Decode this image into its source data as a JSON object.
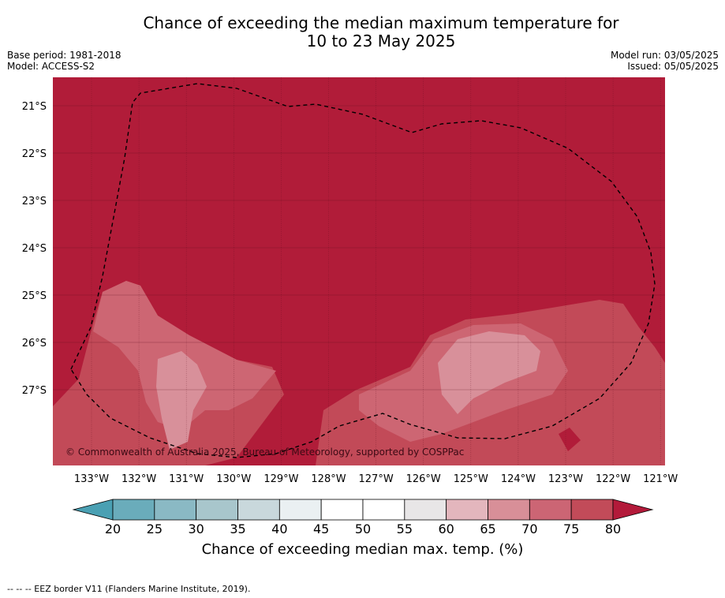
{
  "title": {
    "line1": "Chance of exceeding the median maximum temperature for",
    "line2": "10 to 23 May 2025"
  },
  "meta_left": {
    "base_period": "Base period: 1981-2018",
    "model": "Model: ACCESS-S2"
  },
  "meta_right": {
    "model_run": "Model run: 03/05/2025",
    "issued": "Issued: 05/05/2025"
  },
  "copyright": "© Commonwealth of Australia 2025, Bureau of Meteorology, supported by COSPPac",
  "footnote": "-- -- -- EEZ border V11 (Flanders Marine Institute, 2019).",
  "map": {
    "lat_ticks": [
      "21°S",
      "22°S",
      "23°S",
      "24°S",
      "25°S",
      "26°S",
      "27°S"
    ],
    "lon_ticks": [
      "133°W",
      "132°W",
      "131°W",
      "130°W",
      "129°W",
      "128°W",
      "127°W",
      "126°W",
      "125°W",
      "124°W",
      "123°W",
      "122°W",
      "121°W"
    ],
    "colors": {
      "gt80": "#b11c39",
      "c75_80": "#c24a58",
      "c70_75": "#cd6673",
      "c65_70": "#d8909a",
      "c60_65": "#e4b7bd"
    }
  },
  "colorbar": {
    "title": "Chance of exceeding median max. temp. (%)",
    "ticks": [
      "20",
      "25",
      "30",
      "35",
      "40",
      "45",
      "50",
      "55",
      "60",
      "65",
      "70",
      "75",
      "80"
    ],
    "colors": [
      "#6aacbb",
      "#8ab9c4",
      "#a8c6cc",
      "#c9d8dc",
      "#eaf0f2",
      "#ffffff",
      "#ffffff",
      "#e8e6e7",
      "#e3b6bd",
      "#d88f98",
      "#cc6574",
      "#c24b59"
    ],
    "under_color": "#4aa0b3",
    "over_color": "#b31a3a"
  }
}
